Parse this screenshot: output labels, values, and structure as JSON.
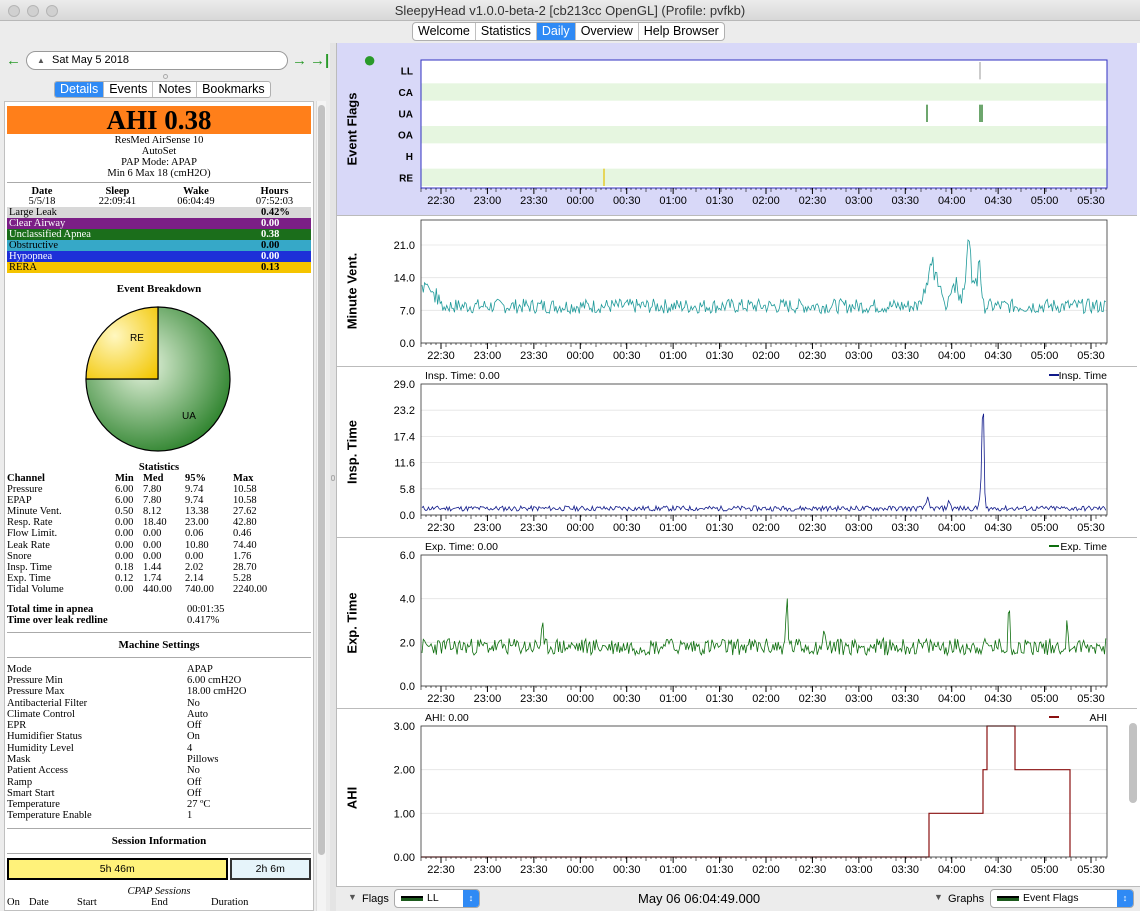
{
  "window": {
    "title": "SleepyHead v1.0.0-beta-2 [cb213cc OpenGL] (Profile: pvfkb)"
  },
  "tabs": [
    "Welcome",
    "Statistics",
    "Daily",
    "Overview",
    "Help Browser"
  ],
  "nav": {
    "date": "Sat May 5 2018",
    "prev_icon": "arrow-left-icon",
    "next_icon": "arrow-right-icon",
    "last_icon": "arrow-last-icon"
  },
  "subtabs": [
    "Details",
    "Events",
    "Notes",
    "Bookmarks"
  ],
  "details": {
    "ahi": "AHI 0.38",
    "machine": "ResMed AirSense 10",
    "mode_line": "AutoSet",
    "pap_mode": "PAP Mode: APAP",
    "pressure_range": "Min 6 Max 18 (cmH2O)",
    "summary_headers": [
      "Date",
      "Sleep",
      "Wake",
      "Hours"
    ],
    "summary_values": [
      "5/5/18",
      "22:09:41",
      "06:04:49",
      "07:52:03"
    ],
    "events": [
      {
        "name": "Large Leak",
        "value": "0.42%",
        "bg": "#d8d8d8",
        "fg": "#000000"
      },
      {
        "name": "Clear Airway",
        "value": "0.00",
        "bg": "#7b1f86",
        "fg": "#ffffff"
      },
      {
        "name": "Unclassified Apnea",
        "value": "0.38",
        "bg": "#1b6e1b",
        "fg": "#ffffff"
      },
      {
        "name": "Obstructive",
        "value": "0.00",
        "bg": "#36a8c8",
        "fg": "#000000"
      },
      {
        "name": "Hypopnea",
        "value": "0.00",
        "bg": "#1d2fd8",
        "fg": "#ffffff"
      },
      {
        "name": "RERA",
        "value": "0.13",
        "bg": "#f5c400",
        "fg": "#000000"
      }
    ],
    "breakdown_title": "Event Breakdown",
    "pie": [
      {
        "label": "RE",
        "fraction": 0.25,
        "color": "#f7d21e"
      },
      {
        "label": "UA",
        "fraction": 0.75,
        "color": "#3f9a3f"
      }
    ],
    "stats_title": "Statistics",
    "stats_headers": [
      "Channel",
      "Min",
      "Med",
      "95%",
      "Max"
    ],
    "stats_rows": [
      [
        "Pressure",
        "6.00",
        "7.80",
        "9.74",
        "10.58"
      ],
      [
        "EPAP",
        "6.00",
        "7.80",
        "9.74",
        "10.58"
      ],
      [
        "Minute Vent.",
        "0.50",
        "8.12",
        "13.38",
        "27.62"
      ],
      [
        "Resp. Rate",
        "0.00",
        "18.40",
        "23.00",
        "42.80"
      ],
      [
        "Flow Limit.",
        "0.00",
        "0.00",
        "0.06",
        "0.46"
      ],
      [
        "Leak Rate",
        "0.00",
        "0.00",
        "10.80",
        "74.40"
      ],
      [
        "Snore",
        "0.00",
        "0.00",
        "0.00",
        "1.76"
      ],
      [
        "Insp. Time",
        "0.18",
        "1.44",
        "2.02",
        "28.70"
      ],
      [
        "Exp. Time",
        "0.12",
        "1.74",
        "2.14",
        "5.28"
      ],
      [
        "Tidal Volume",
        "0.00",
        "440.00",
        "740.00",
        "2240.00"
      ]
    ],
    "totals": [
      [
        "Total time in apnea",
        "00:01:35"
      ],
      [
        "Time over leak redline",
        "0.417%"
      ]
    ],
    "settings_title": "Machine Settings",
    "settings": [
      [
        "Mode",
        "APAP"
      ],
      [
        "Pressure Min",
        "6.00 cmH2O"
      ],
      [
        "Pressure Max",
        "18.00 cmH2O"
      ],
      [
        "Antibacterial Filter",
        "No"
      ],
      [
        "Climate Control",
        "Auto"
      ],
      [
        "EPR",
        "Off"
      ],
      [
        "Humidifier Status",
        "On"
      ],
      [
        "Humidity Level",
        "4"
      ],
      [
        "Mask",
        "Pillows"
      ],
      [
        "Patient Access",
        "No"
      ],
      [
        "Ramp",
        "Off"
      ],
      [
        "Smart Start",
        "Off"
      ],
      [
        "Temperature",
        "27 ºC"
      ],
      [
        "Temperature Enable",
        "1"
      ]
    ],
    "session_title": "Session Information",
    "session_bars": [
      {
        "label": "5h 46m",
        "color": "#fff27a"
      },
      {
        "label": "2h 6m",
        "color": "#e6f4fa"
      }
    ],
    "cpap_title": "CPAP Sessions",
    "cpap_headers": [
      "On",
      "Date",
      "Start",
      "End",
      "Duration"
    ]
  },
  "graphs": {
    "time_ticks": [
      "22:30",
      "23:00",
      "23:30",
      "00:00",
      "00:30",
      "01:00",
      "01:30",
      "02:00",
      "02:30",
      "03:00",
      "03:30",
      "04:00",
      "04:30",
      "05:00",
      "05:30"
    ],
    "event_flags": {
      "title": "Event Flags",
      "rows": [
        "LL",
        "CA",
        "UA",
        "OA",
        "H",
        "RE"
      ]
    },
    "minute_vent": {
      "title": "Minute Vent.",
      "yticks": [
        "21.0",
        "14.0",
        "7.0",
        "0.0"
      ]
    },
    "insp_time": {
      "title": "Insp. Time",
      "header": "Insp. Time: 0.00",
      "legend": "Insp. Time",
      "yticks": [
        "29.0",
        "23.2",
        "17.4",
        "11.6",
        "5.8",
        "0.0"
      ]
    },
    "exp_time": {
      "title": "Exp. Time",
      "header": "Exp. Time: 0.00",
      "legend": "Exp. Time",
      "yticks": [
        "6.0",
        "4.0",
        "2.0",
        "0.0"
      ]
    },
    "ahi": {
      "title": "AHI",
      "header": "AHI: 0.00",
      "legend": "AHI",
      "yticks": [
        "3.00",
        "2.00",
        "1.00",
        "0.00"
      ]
    }
  },
  "bottom": {
    "flags_label": "Flags",
    "flags_value": "LL",
    "timestamp": "May 06 06:04:49.000",
    "graphs_label": "Graphs",
    "graphs_value": "Event Flags"
  },
  "colors": {
    "minute_vent": "#1f9a9a",
    "insp_time": "#101a8a",
    "exp_time": "#0e6e0e",
    "ahi": "#8a1010",
    "flag_band": "#e6f6e0",
    "flags_bg": "#d8d8f8"
  }
}
